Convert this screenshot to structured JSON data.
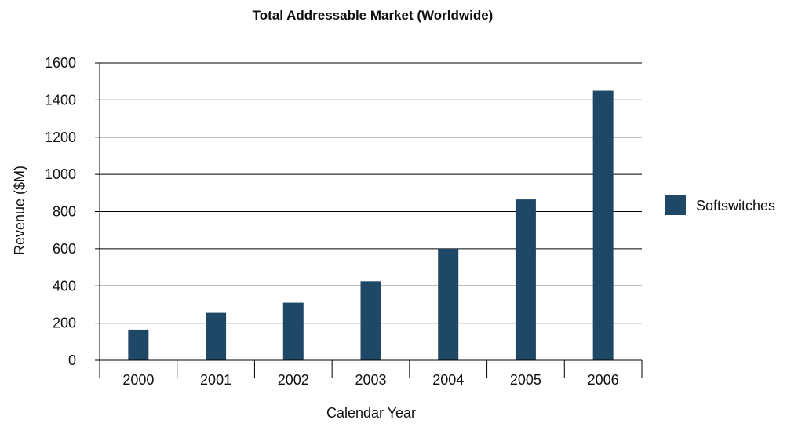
{
  "chart_data": {
    "type": "bar",
    "title": "Total Addressable Market (Worldwide)",
    "xlabel": "Calendar Year",
    "ylabel": "Revenue ($M)",
    "categories": [
      "2000",
      "2001",
      "2002",
      "2003",
      "2004",
      "2005",
      "2006"
    ],
    "series": [
      {
        "name": "Softswitches",
        "values": [
          165,
          255,
          310,
          425,
          600,
          865,
          1450
        ],
        "color": "#1f4766"
      }
    ],
    "ylim": [
      0,
      1600
    ],
    "yticks": [
      0,
      200,
      400,
      600,
      800,
      1000,
      1200,
      1400,
      1600
    ],
    "grid": true,
    "legend_position": "right"
  }
}
